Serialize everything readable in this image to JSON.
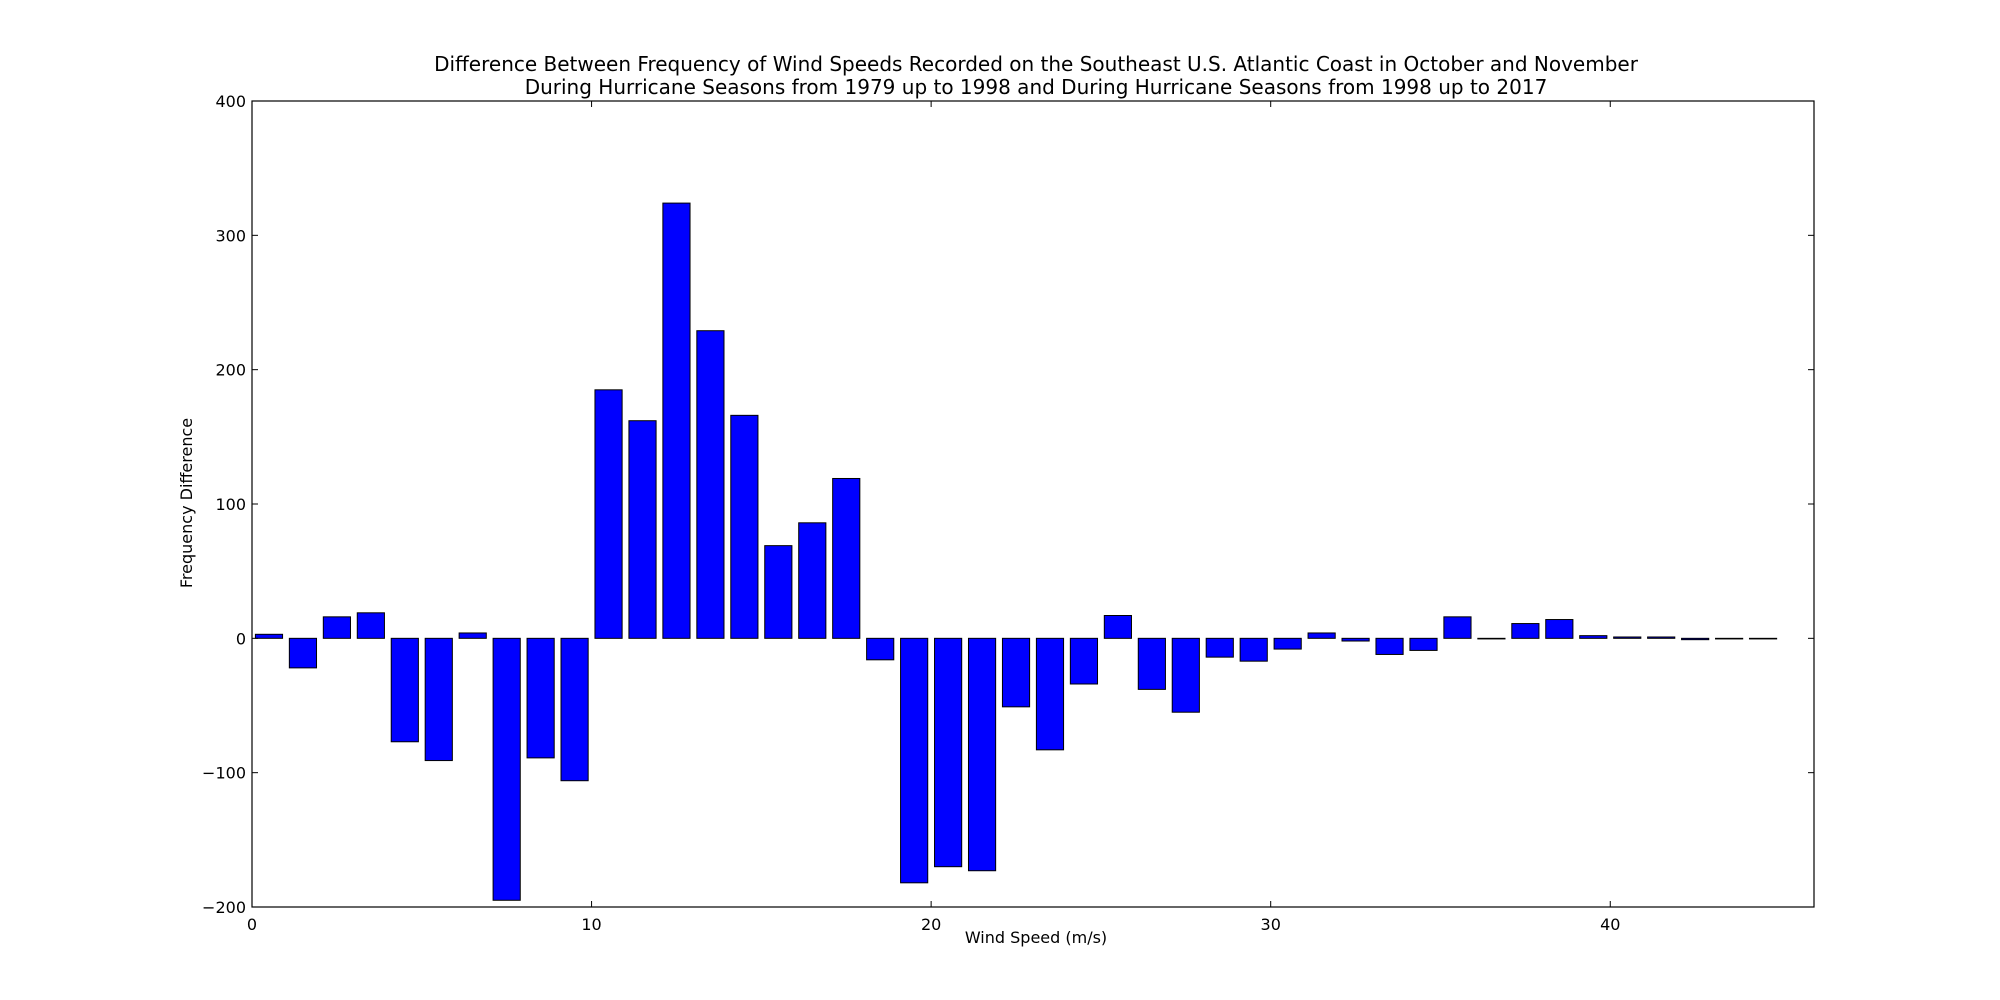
{
  "chart_data": {
    "type": "bar",
    "title_line1": "Difference Between Frequency of Wind Speeds Recorded on the Southeast U.S. Atlantic Coast in October and November",
    "title_line2": "During Hurricane Seasons from 1979 up to 1998 and During Hurricane Seasons from 1998 up to 2017",
    "xlabel": "Wind Speed (m/s)",
    "ylabel": "Frequency Difference",
    "xlim": [
      0,
      46
    ],
    "ylim": [
      -200,
      400
    ],
    "xticks": [
      0,
      10,
      20,
      30,
      40
    ],
    "yticks": [
      -200,
      -100,
      0,
      100,
      200,
      300,
      400
    ],
    "xtick_labels": [
      "0",
      "10",
      "20",
      "30",
      "40"
    ],
    "ytick_labels": [
      "−200",
      "−100",
      "0",
      "100",
      "200",
      "300",
      "400"
    ],
    "bar_color": "#0000ff",
    "bar_width": 0.8,
    "x": [
      0,
      1,
      2,
      3,
      4,
      5,
      6,
      7,
      8,
      9,
      10,
      11,
      12,
      13,
      14,
      15,
      16,
      17,
      18,
      19,
      20,
      21,
      22,
      23,
      24,
      25,
      26,
      27,
      28,
      29,
      30,
      31,
      32,
      33,
      34,
      35,
      36,
      37,
      38,
      39,
      40,
      41,
      42,
      43,
      44
    ],
    "values": [
      3,
      -22,
      16,
      19,
      -77,
      -91,
      4,
      -195,
      -89,
      -106,
      185,
      162,
      324,
      229,
      166,
      69,
      86,
      119,
      -16,
      -182,
      -170,
      -173,
      -51,
      -83,
      -34,
      17,
      -38,
      -55,
      -14,
      -17,
      -8,
      4,
      -2,
      -12,
      -9,
      16,
      0,
      11,
      14,
      2,
      1,
      1,
      -1,
      0,
      0
    ]
  }
}
